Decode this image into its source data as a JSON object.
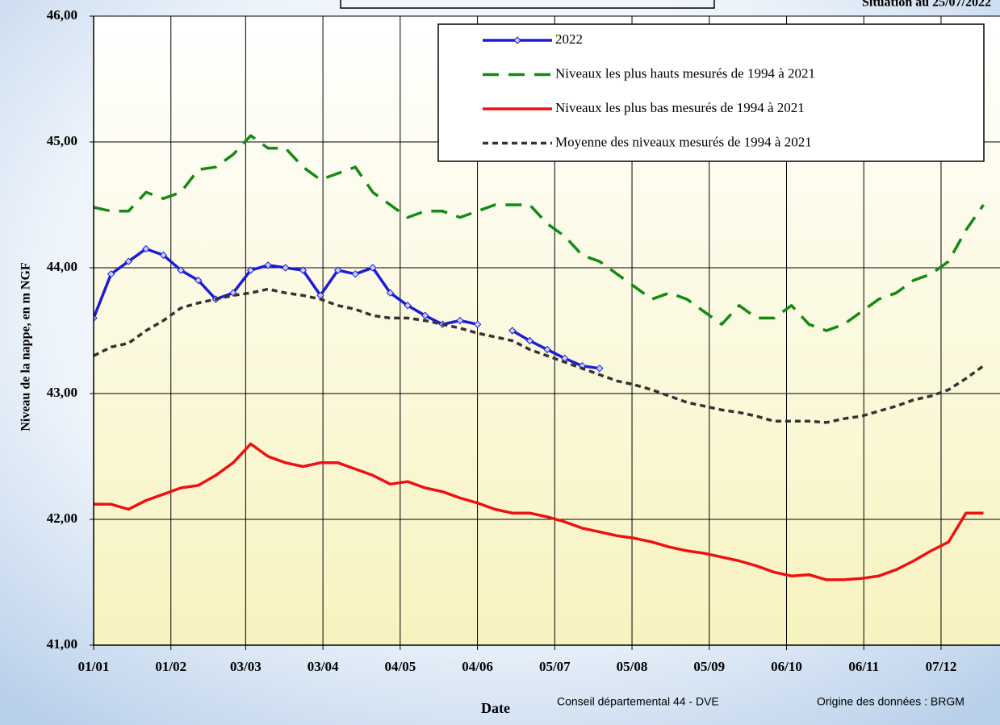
{
  "chart_data": {
    "type": "line",
    "situation": "Situation au 25/07/2022",
    "xlabel": "Date",
    "ylabel": "Niveau de la nappe, en m NGF",
    "footer_left": "Conseil départemental 44 - DVE",
    "footer_right": "Origine des données : BRGM",
    "x": [
      "01/01",
      "08/01",
      "15/01",
      "22/01",
      "29/01",
      "05/02",
      "12/02",
      "19/02",
      "26/02",
      "05/03",
      "12/03",
      "19/03",
      "26/03",
      "02/04",
      "09/04",
      "16/04",
      "23/04",
      "30/04",
      "07/05",
      "14/05",
      "21/05",
      "28/05",
      "04/06",
      "11/06",
      "18/06",
      "25/06",
      "02/07",
      "09/07",
      "16/07",
      "23/07",
      "30/07",
      "06/08",
      "13/08",
      "20/08",
      "27/08",
      "03/09",
      "10/09",
      "17/09",
      "24/09",
      "01/10",
      "08/10",
      "15/10",
      "22/10",
      "29/10",
      "05/11",
      "12/11",
      "19/11",
      "26/11",
      "03/12",
      "10/12",
      "17/12",
      "24/12"
    ],
    "xlim": [
      "01/01",
      "30/12"
    ],
    "xticks": [
      "01/01",
      "01/02",
      "03/03",
      "03/04",
      "04/05",
      "04/06",
      "05/07",
      "05/08",
      "05/09",
      "06/10",
      "06/11",
      "07/12"
    ],
    "ylim": [
      41,
      46
    ],
    "yticks": [
      {
        "value": 41,
        "label": "41,00"
      },
      {
        "value": 42,
        "label": "42,00"
      },
      {
        "value": 43,
        "label": "43,00"
      },
      {
        "value": 44,
        "label": "44,00"
      },
      {
        "value": 45,
        "label": "45,00"
      },
      {
        "value": 46,
        "label": "46,00"
      }
    ],
    "grid": true,
    "legend": "top-right",
    "series": [
      {
        "name": "2022",
        "color": "#1c1cd8",
        "linestyle": "solid",
        "marker": "diamond",
        "values": [
          43.6,
          43.95,
          44.05,
          44.15,
          44.1,
          43.98,
          43.9,
          43.75,
          43.8,
          43.98,
          44.02,
          44.0,
          43.98,
          43.78,
          43.98,
          43.95,
          44.0,
          43.8,
          43.7,
          43.62,
          43.55,
          43.58,
          43.55,
          null,
          43.5,
          43.42,
          43.35,
          43.28,
          43.22,
          43.2,
          null,
          null,
          null,
          null,
          null,
          null,
          null,
          null,
          null,
          null,
          null,
          null,
          null,
          null,
          null,
          null,
          null,
          null,
          null,
          null,
          null,
          null
        ]
      },
      {
        "name": "Niveaux les plus hauts mesurés de 1994 à 2021",
        "color": "#138a13",
        "linestyle": "long-dash",
        "values": [
          44.48,
          44.45,
          44.45,
          44.6,
          44.55,
          44.6,
          44.78,
          44.8,
          44.9,
          45.05,
          44.95,
          44.95,
          44.8,
          44.7,
          44.75,
          44.8,
          44.6,
          44.5,
          44.4,
          44.45,
          44.45,
          44.4,
          44.45,
          44.5,
          44.5,
          44.5,
          44.35,
          44.25,
          44.1,
          44.05,
          43.95,
          43.85,
          43.75,
          43.8,
          43.75,
          43.65,
          43.55,
          43.7,
          43.6,
          43.6,
          43.7,
          43.55,
          43.5,
          43.55,
          43.65,
          43.75,
          43.8,
          43.9,
          43.95,
          44.05,
          44.3,
          44.5
        ]
      },
      {
        "name": "Niveaux les plus bas mesurés de 1994 à 2021",
        "color": "#ee1111",
        "linestyle": "solid",
        "values": [
          42.12,
          42.12,
          42.08,
          42.15,
          42.2,
          42.25,
          42.27,
          42.35,
          42.45,
          42.6,
          42.5,
          42.45,
          42.42,
          42.45,
          42.45,
          42.4,
          42.35,
          42.28,
          42.3,
          42.25,
          42.22,
          42.17,
          42.13,
          42.08,
          42.05,
          42.05,
          42.02,
          41.98,
          41.93,
          41.9,
          41.87,
          41.85,
          41.82,
          41.78,
          41.75,
          41.73,
          41.7,
          41.67,
          41.63,
          41.58,
          41.55,
          41.56,
          41.52,
          41.52,
          41.53,
          41.55,
          41.6,
          41.67,
          41.75,
          41.82,
          42.05,
          42.05
        ]
      },
      {
        "name": "Moyenne des niveaux mesurés de 1994 à 2021",
        "color": "#333333",
        "linestyle": "dash",
        "values": [
          43.3,
          43.37,
          43.4,
          43.5,
          43.58,
          43.68,
          43.72,
          43.75,
          43.78,
          43.8,
          43.83,
          43.8,
          43.78,
          43.75,
          43.7,
          43.67,
          43.62,
          43.6,
          43.6,
          43.58,
          43.55,
          43.52,
          43.48,
          43.45,
          43.42,
          43.35,
          43.3,
          43.25,
          43.2,
          43.15,
          43.1,
          43.07,
          43.03,
          42.98,
          42.93,
          42.9,
          42.87,
          42.85,
          42.82,
          42.78,
          42.78,
          42.78,
          42.77,
          42.8,
          42.82,
          42.86,
          42.9,
          42.95,
          42.98,
          43.03,
          43.12,
          43.22
        ]
      }
    ]
  }
}
